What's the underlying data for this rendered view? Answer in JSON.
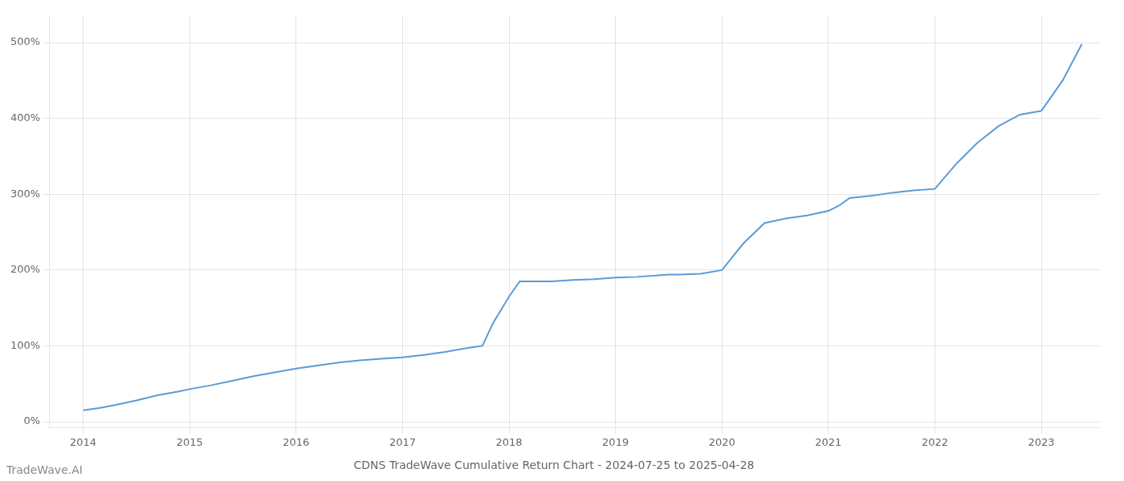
{
  "chart_data": {
    "type": "line",
    "title": "CDNS TradeWave Cumulative Return Chart - 2024-07-25 to 2025-04-28",
    "annotations": [
      "TradeWave.AI"
    ],
    "color": "#5b9bd5",
    "grid": true,
    "x": [
      2014.0,
      2014.15,
      2014.3,
      2014.5,
      2014.7,
      2014.9,
      2015.0,
      2015.2,
      2015.4,
      2015.6,
      2015.8,
      2016.0,
      2016.2,
      2016.4,
      2016.6,
      2016.8,
      2017.0,
      2017.2,
      2017.4,
      2017.6,
      2017.75,
      2017.85,
      2018.0,
      2018.1,
      2018.2,
      2018.4,
      2018.6,
      2018.8,
      2019.0,
      2019.2,
      2019.4,
      2019.5,
      2019.6,
      2019.8,
      2020.0,
      2020.2,
      2020.4,
      2020.6,
      2020.8,
      2021.0,
      2021.1,
      2021.2,
      2021.4,
      2021.6,
      2021.8,
      2022.0,
      2022.2,
      2022.4,
      2022.6,
      2022.8,
      2023.0,
      2023.2,
      2023.38
    ],
    "values": [
      15,
      18,
      22,
      28,
      35,
      40,
      43,
      48,
      54,
      60,
      65,
      70,
      74,
      78,
      81,
      83,
      85,
      88,
      92,
      97,
      100,
      130,
      165,
      185,
      185,
      185,
      187,
      188,
      190,
      191,
      193,
      194,
      194,
      195,
      200,
      235,
      262,
      268,
      272,
      278,
      285,
      295,
      298,
      302,
      305,
      307,
      340,
      368,
      390,
      405,
      410,
      450,
      498
    ],
    "xlim": [
      2013.68,
      2023.55
    ],
    "xticks": [
      2014,
      2015,
      2016,
      2017,
      2018,
      2019,
      2020,
      2021,
      2022,
      2023
    ],
    "ylim": [
      -8,
      535
    ],
    "yticks": [
      {
        "value": 0,
        "label": "0%"
      },
      {
        "value": 100,
        "label": "100%"
      },
      {
        "value": 200,
        "label": "200%"
      },
      {
        "value": 300,
        "label": "300%"
      },
      {
        "value": 400,
        "label": "400%"
      },
      {
        "value": 500,
        "label": "500%"
      }
    ]
  }
}
